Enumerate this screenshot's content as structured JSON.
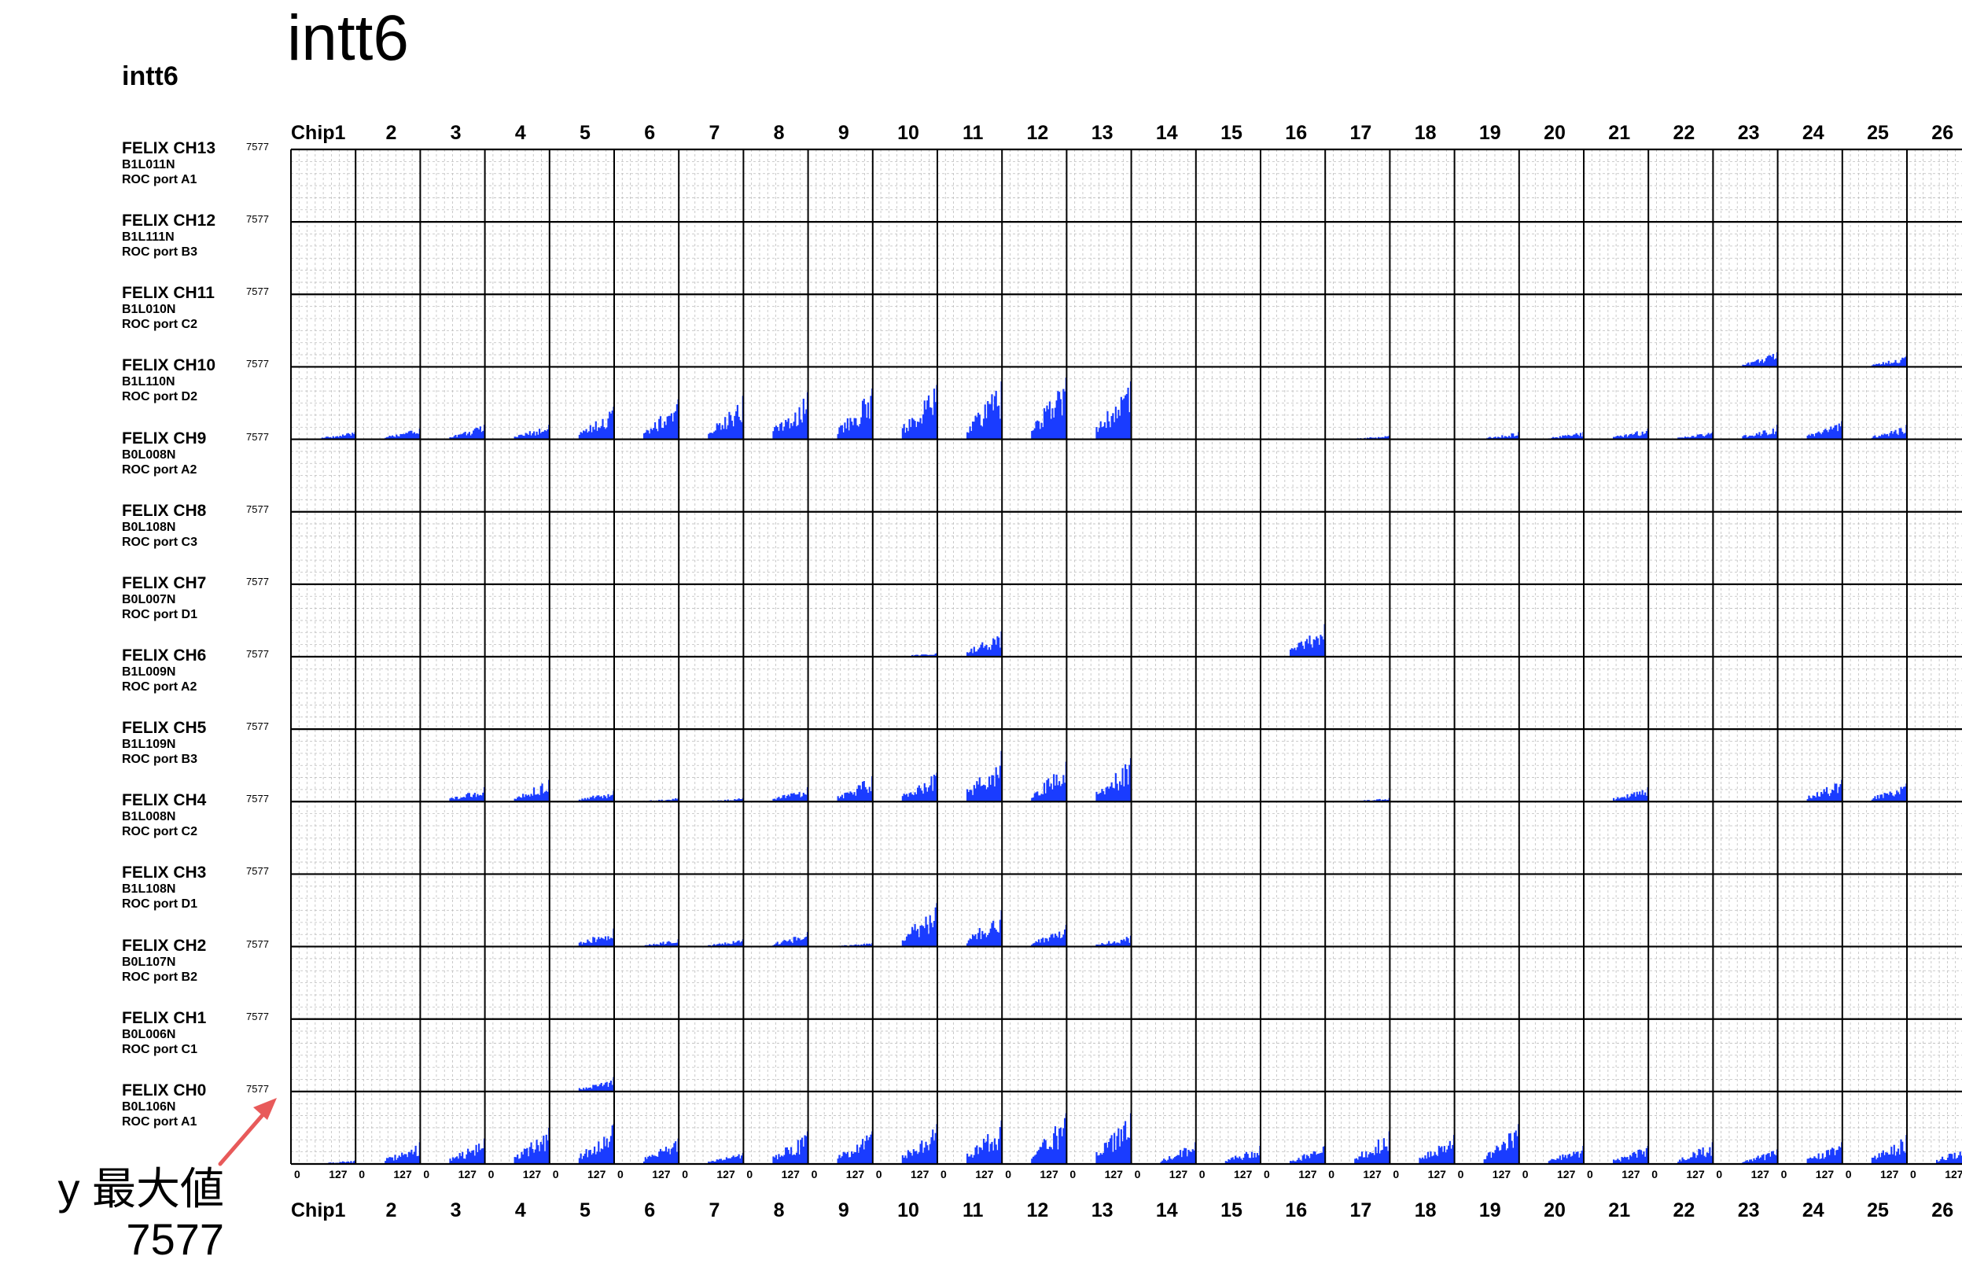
{
  "page_title": "intt6",
  "panel_label": "intt6",
  "annotation": {
    "label": "y 最大値",
    "value": "7577",
    "color": "#e85a5a"
  },
  "colors": {
    "bar": "#1a3cff",
    "grid": "#bdbdbd",
    "frame": "#000000"
  },
  "chart_data": {
    "type": "bar",
    "chips": [
      "Chip1",
      "2",
      "3",
      "4",
      "5",
      "6",
      "7",
      "8",
      "9",
      "10",
      "11",
      "12",
      "13",
      "14",
      "15",
      "16",
      "17",
      "18",
      "19",
      "20",
      "21",
      "22",
      "23",
      "24",
      "25",
      "26"
    ],
    "channel_axis_ticks": [
      "0",
      "127"
    ],
    "ymax_label": "7577",
    "ylim": [
      0,
      7577
    ],
    "rows": [
      {
        "channel": "FELIX CH13",
        "ladder": "B1L011N",
        "roc": "ROC port A1",
        "values": [
          0,
          0,
          0,
          0,
          0,
          0,
          0,
          0,
          0,
          0,
          0,
          0,
          0,
          0,
          0,
          0,
          0,
          0,
          0,
          0,
          0,
          0,
          0,
          0,
          0,
          0
        ]
      },
      {
        "channel": "FELIX CH12",
        "ladder": "B1L111N",
        "roc": "ROC port B3",
        "values": [
          0,
          0,
          0,
          0,
          0,
          0,
          0,
          0,
          0,
          0,
          0,
          0,
          0,
          0,
          0,
          0,
          0,
          0,
          0,
          0,
          0,
          0,
          0,
          0,
          0,
          0
        ]
      },
      {
        "channel": "FELIX CH11",
        "ladder": "B1L010N",
        "roc": "ROC port C2",
        "values": [
          0,
          0,
          0,
          0,
          0,
          0,
          0,
          0,
          0,
          0,
          0,
          0,
          0,
          0,
          0,
          0,
          0,
          0,
          0,
          0,
          0,
          0,
          0.2,
          0,
          0.15,
          0
        ]
      },
      {
        "channel": "FELIX CH10",
        "ladder": "B1L110N",
        "roc": "ROC port D2",
        "values": [
          0.1,
          0.15,
          0.2,
          0.2,
          0.45,
          0.55,
          0.6,
          0.65,
          0.7,
          0.75,
          0.8,
          0.85,
          0.8,
          0,
          0,
          0,
          0.05,
          0,
          0.1,
          0.1,
          0.15,
          0.1,
          0.2,
          0.25,
          0.2,
          0
        ]
      },
      {
        "channel": "FELIX CH9",
        "ladder": "B0L008N",
        "roc": "ROC port A2",
        "values": [
          0,
          0,
          0,
          0,
          0,
          0,
          0,
          0,
          0,
          0,
          0,
          0,
          0,
          0,
          0,
          0,
          0,
          0,
          0,
          0,
          0,
          0,
          0,
          0,
          0,
          0
        ]
      },
      {
        "channel": "FELIX CH8",
        "ladder": "B0L108N",
        "roc": "ROC port C3",
        "values": [
          0,
          0,
          0,
          0,
          0,
          0,
          0,
          0,
          0,
          0,
          0,
          0,
          0,
          0,
          0,
          0,
          0,
          0,
          0,
          0,
          0,
          0,
          0,
          0,
          0,
          0
        ]
      },
      {
        "channel": "FELIX CH7",
        "ladder": "B0L007N",
        "roc": "ROC port D1",
        "values": [
          0,
          0,
          0,
          0,
          0,
          0,
          0,
          0,
          0,
          0.05,
          0.35,
          0,
          0,
          0,
          0,
          0.45,
          0,
          0,
          0,
          0,
          0,
          0,
          0,
          0,
          0,
          0
        ]
      },
      {
        "channel": "FELIX CH6",
        "ladder": "B1L009N",
        "roc": "ROC port A2",
        "values": [
          0,
          0,
          0,
          0,
          0,
          0,
          0,
          0,
          0,
          0,
          0,
          0,
          0,
          0,
          0,
          0,
          0,
          0,
          0,
          0,
          0,
          0,
          0,
          0,
          0,
          0
        ]
      },
      {
        "channel": "FELIX CH5",
        "ladder": "B1L109N",
        "roc": "ROC port B3",
        "values": [
          0,
          0,
          0.2,
          0.3,
          0.15,
          0.05,
          0.05,
          0.2,
          0.35,
          0.4,
          0.7,
          0.55,
          0.6,
          0,
          0,
          0,
          0.05,
          0,
          0,
          0,
          0.2,
          0,
          0,
          0.3,
          0.25,
          0
        ]
      },
      {
        "channel": "FELIX CH4",
        "ladder": "B1L008N",
        "roc": "ROC port C2",
        "values": [
          0,
          0,
          0,
          0,
          0,
          0,
          0,
          0,
          0,
          0,
          0,
          0,
          0,
          0,
          0,
          0,
          0,
          0,
          0,
          0,
          0,
          0,
          0,
          0,
          0,
          0
        ]
      },
      {
        "channel": "FELIX CH3",
        "ladder": "B1L108N",
        "roc": "ROC port D1",
        "values": [
          0,
          0,
          0,
          0,
          0.25,
          0.1,
          0.1,
          0.2,
          0.05,
          0.6,
          0.5,
          0.3,
          0.15,
          0,
          0,
          0,
          0,
          0,
          0,
          0,
          0,
          0,
          0,
          0,
          0,
          0
        ]
      },
      {
        "channel": "FELIX CH2",
        "ladder": "B0L107N",
        "roc": "ROC port B2",
        "values": [
          0,
          0,
          0,
          0,
          0,
          0,
          0,
          0,
          0,
          0,
          0,
          0,
          0,
          0,
          0,
          0,
          0,
          0,
          0,
          0,
          0,
          0,
          0,
          0,
          0,
          0
        ]
      },
      {
        "channel": "FELIX CH1",
        "ladder": "B0L006N",
        "roc": "ROC port C1",
        "values": [
          0,
          0,
          0,
          0,
          0.2,
          0,
          0,
          0,
          0,
          0,
          0,
          0,
          0,
          0,
          0,
          0,
          0,
          0,
          0,
          0,
          0,
          0,
          0,
          0,
          0,
          0
        ]
      },
      {
        "channel": "FELIX CH0",
        "ladder": "B0L106N",
        "roc": "ROC port A1",
        "values": [
          0.05,
          0.3,
          0.35,
          0.5,
          0.55,
          0.35,
          0.15,
          0.45,
          0.45,
          0.55,
          0.6,
          0.7,
          0.7,
          0.3,
          0.25,
          0.25,
          0.45,
          0.4,
          0.55,
          0.25,
          0.25,
          0.3,
          0.2,
          0.3,
          0.4,
          0.3
        ]
      }
    ]
  }
}
